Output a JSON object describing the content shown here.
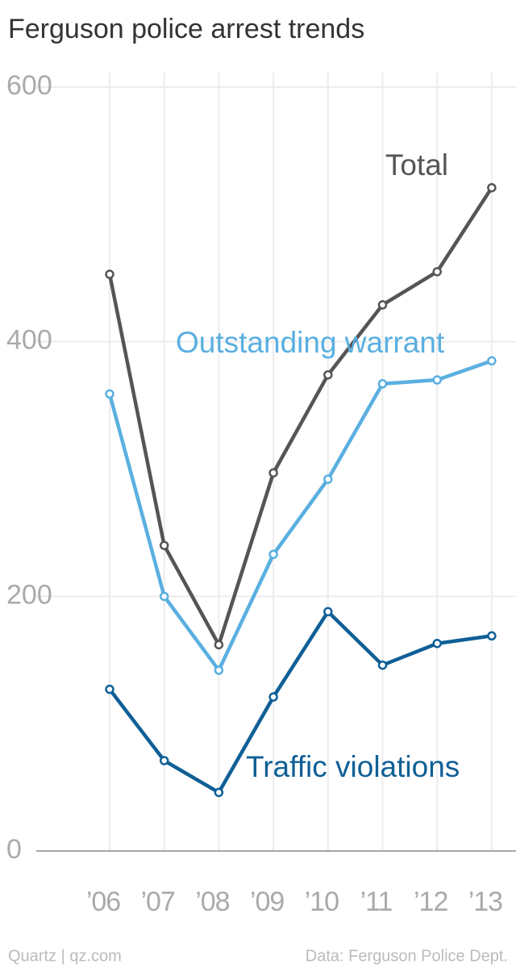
{
  "chart_data": {
    "type": "line",
    "title": "Ferguson police arrest trends",
    "categories": [
      "’06",
      "’07",
      "’08",
      "’09",
      "’10",
      "’11",
      "’12",
      "’13"
    ],
    "series": [
      {
        "name": "Total",
        "color": "#555555",
        "values": [
          453,
          240,
          162,
          297,
          374,
          429,
          455,
          521
        ]
      },
      {
        "name": "Outstanding warrant",
        "color": "#5aafe0",
        "values": [
          359,
          200,
          142,
          233,
          292,
          367,
          370,
          385
        ]
      },
      {
        "name": "Traffic violations",
        "color": "#0f5f96",
        "values": [
          127,
          71,
          46,
          121,
          188,
          146,
          163,
          169
        ]
      }
    ],
    "ylim": [
      0,
      600
    ],
    "yticks": [
      0,
      200,
      400,
      600
    ],
    "grid": true,
    "source": "Data: Ferguson Police Dept.",
    "credit": "Quartz | qz.com"
  }
}
